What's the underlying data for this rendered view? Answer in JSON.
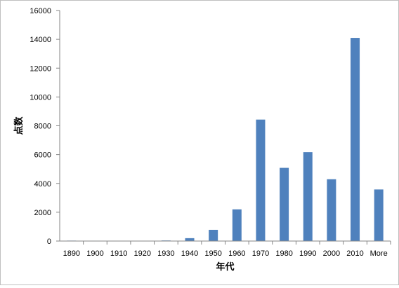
{
  "chart_data": {
    "type": "bar",
    "title": "",
    "xlabel": "年代",
    "ylabel": "点数",
    "categories": [
      "1890",
      "1900",
      "1910",
      "1920",
      "1930",
      "1940",
      "1950",
      "1960",
      "1970",
      "1980",
      "1990",
      "2000",
      "2010",
      "More"
    ],
    "values": [
      30,
      25,
      5,
      5,
      40,
      200,
      780,
      2200,
      8430,
      5080,
      6170,
      4290,
      14100,
      3580
    ],
    "ylim": [
      0,
      16000
    ],
    "yticks": [
      0,
      2000,
      4000,
      6000,
      8000,
      10000,
      12000,
      14000,
      16000
    ],
    "ytick_labels": [
      "0",
      "2000",
      "4000",
      "6000",
      "8000",
      "10000",
      "12000",
      "14000",
      "16000"
    ],
    "grid": false,
    "legend": "none",
    "bar_color": "#4F81BD"
  }
}
